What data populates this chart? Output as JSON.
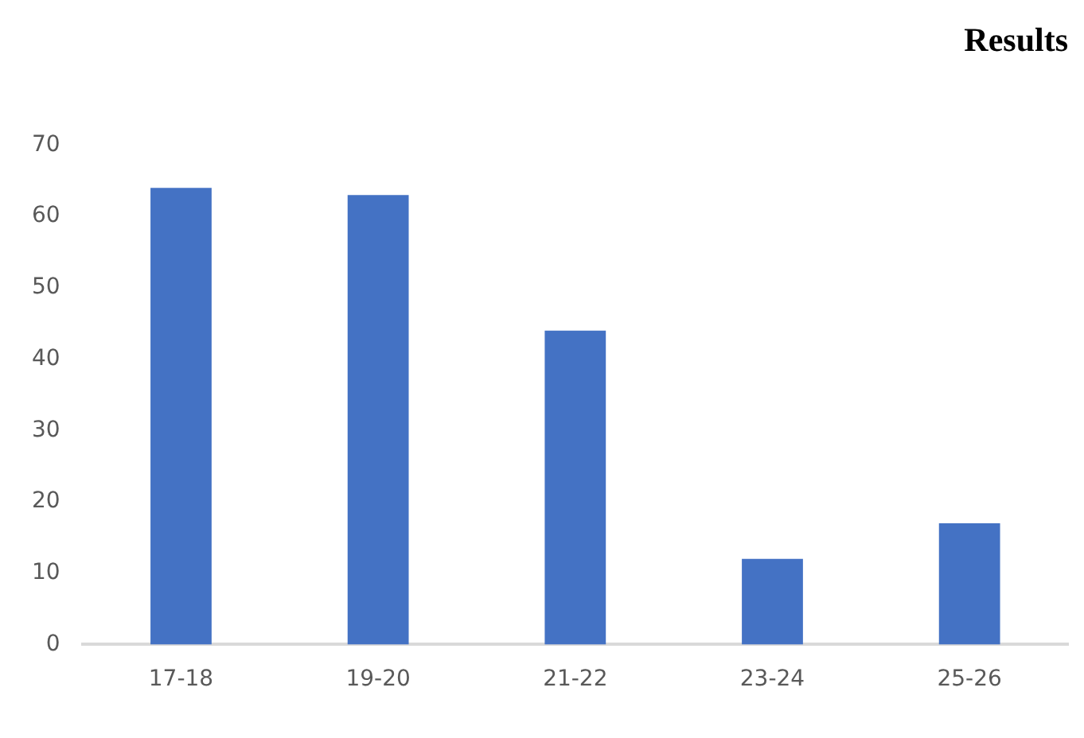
{
  "chart_data": {
    "type": "bar",
    "title": "Results",
    "categories": [
      "17-18",
      "19-20",
      "21-22",
      "23-24",
      "25-26"
    ],
    "values": [
      64,
      63,
      44,
      12,
      17
    ],
    "color": "#4472c4",
    "ylim": [
      0,
      70
    ],
    "yticks": [
      0,
      10,
      20,
      30,
      40,
      50,
      60,
      70
    ],
    "grid": false,
    "legend": false
  }
}
